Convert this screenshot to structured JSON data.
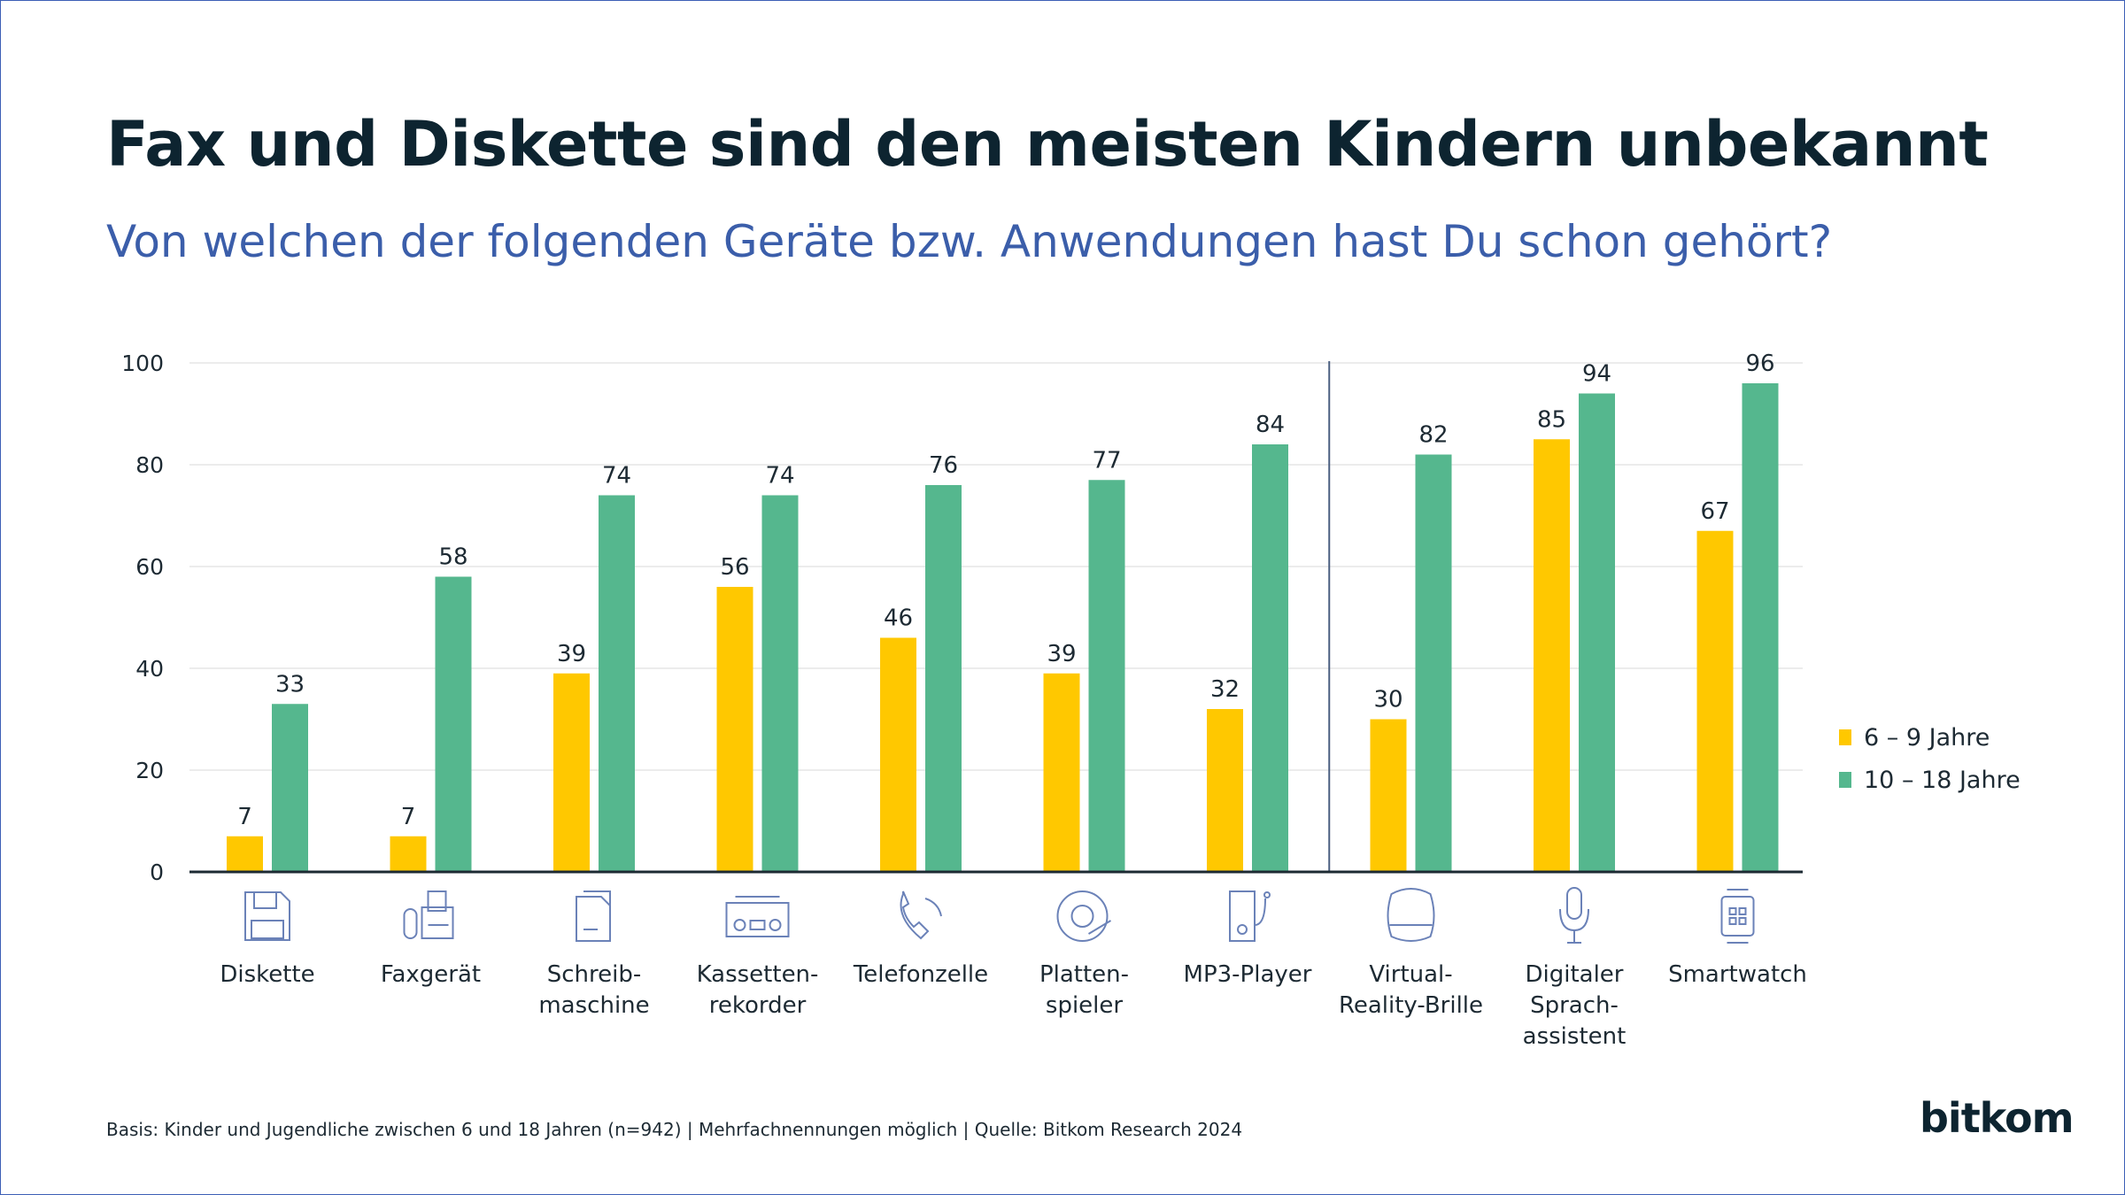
{
  "title": "Fax und Diskette sind den meisten Kindern unbekannt",
  "subtitle": "Von welchen der folgenden Geräte bzw. Anwendungen hast Du schon gehört?",
  "footer": "Basis: Kinder und Jugendliche zwischen 6 und 18 Jahren (n=942) | Mehrfachnennungen möglich | Quelle: Bitkom Research 2024",
  "logo": "bitkom",
  "colors": {
    "series1": "#FFC800",
    "series2": "#55B78E",
    "title": "#0d2430",
    "subtitle": "#3b5eaa"
  },
  "chart_data": {
    "type": "bar",
    "categories": [
      [
        "Diskette"
      ],
      [
        "Faxgerät"
      ],
      [
        "Schreib-",
        "maschine"
      ],
      [
        "Kassetten-",
        "rekorder"
      ],
      [
        "Telefonzelle"
      ],
      [
        "Platten-",
        "spieler"
      ],
      [
        "MP3-Player"
      ],
      [
        "Virtual-",
        "Reality-Brille"
      ],
      [
        "Digitaler",
        "Sprach-",
        "assistent"
      ],
      [
        "Smartwatch"
      ]
    ],
    "icons": [
      "floppy-disk-icon",
      "fax-icon",
      "typewriter-document-icon",
      "cassette-recorder-icon",
      "phone-icon",
      "record-player-icon",
      "mp3-player-icon",
      "vr-headset-icon",
      "microphone-icon",
      "smartwatch-icon"
    ],
    "series": [
      {
        "name": "6 – 9 Jahre",
        "values": [
          7,
          7,
          39,
          56,
          46,
          39,
          32,
          30,
          85,
          67
        ]
      },
      {
        "name": "10 – 18 Jahre",
        "values": [
          33,
          58,
          74,
          74,
          76,
          77,
          84,
          82,
          94,
          96
        ]
      }
    ],
    "ylim": [
      0,
      100
    ],
    "yticks": [
      0,
      20,
      40,
      60,
      80,
      100
    ],
    "grid": true,
    "divider_after_category": 7,
    "legend": "right"
  }
}
